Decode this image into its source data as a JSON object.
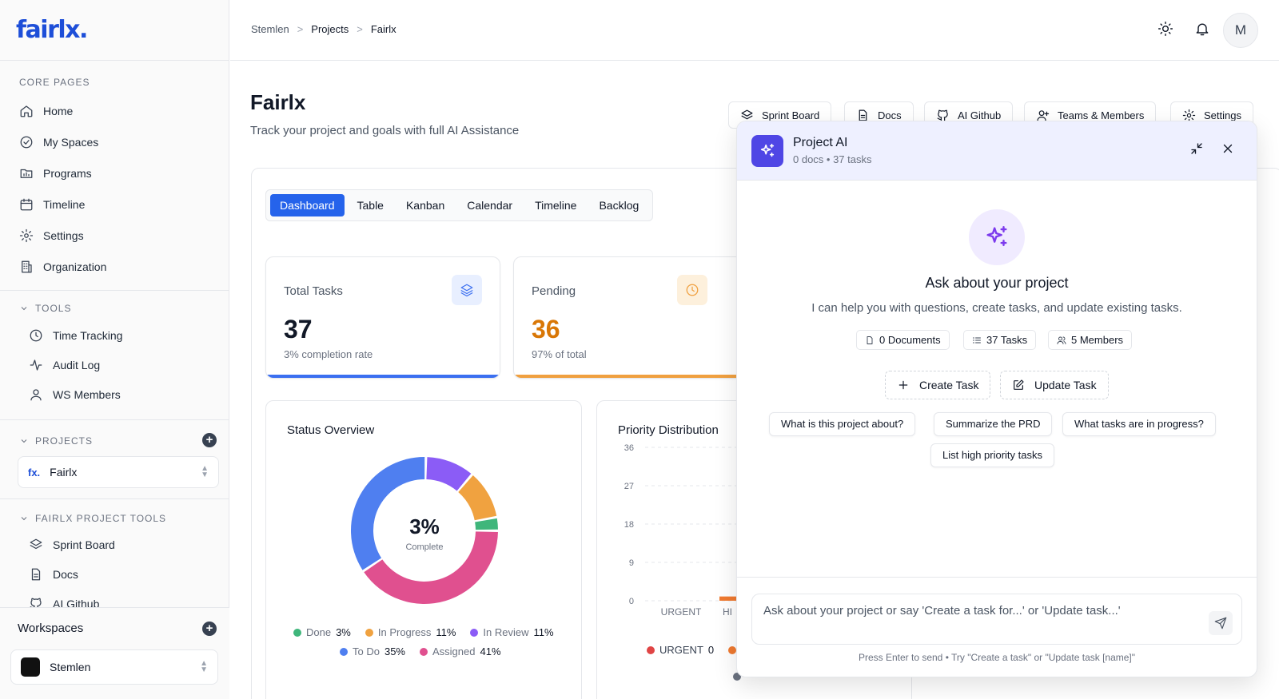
{
  "brand": {
    "logo_text": "fairlx."
  },
  "sidebar": {
    "core_label": "CORE PAGES",
    "core_items": [
      {
        "label": "Home",
        "icon": "home-icon"
      },
      {
        "label": "My Spaces",
        "icon": "check-circle-icon"
      },
      {
        "label": "Programs",
        "icon": "folder-chart-icon"
      },
      {
        "label": "Timeline",
        "icon": "calendar-icon"
      },
      {
        "label": "Settings",
        "icon": "gear-icon"
      },
      {
        "label": "Organization",
        "icon": "building-icon"
      }
    ],
    "tools_label": "TOOLS",
    "tools_items": [
      {
        "label": "Time Tracking",
        "icon": "clock-icon"
      },
      {
        "label": "Audit Log",
        "icon": "activity-icon"
      },
      {
        "label": "WS Members",
        "icon": "user-icon"
      }
    ],
    "projects_label": "PROJECTS",
    "project_selected": "Fairlx",
    "project_tools_label": "FAIRLX PROJECT TOOLS",
    "project_tools_items": [
      {
        "label": "Sprint Board",
        "icon": "layers-icon"
      },
      {
        "label": "Docs",
        "icon": "document-icon"
      },
      {
        "label": "AI Github",
        "icon": "github-icon"
      }
    ],
    "workspaces_label": "Workspaces",
    "workspace_selected": "Stemlen"
  },
  "header": {
    "breadcrumbs": [
      "Stemlen",
      "Projects",
      "Fairlx"
    ],
    "avatar_initial": "M"
  },
  "page": {
    "title": "Fairlx",
    "subtitle": "Track your project and goals with full AI Assistance",
    "actions": [
      "Sprint Board",
      "Docs",
      "AI Github",
      "Teams & Members",
      "Settings"
    ],
    "tabs": [
      "Dashboard",
      "Table",
      "Kanban",
      "Calendar",
      "Timeline",
      "Backlog"
    ],
    "active_tab": "Dashboard"
  },
  "stats": {
    "total": {
      "label": "Total Tasks",
      "value": "37",
      "sub": "3% completion rate",
      "color": "#3b6ff0"
    },
    "pending": {
      "label": "Pending",
      "value": "36",
      "sub": "97% of total",
      "color": "#f0a040",
      "value_color": "#d97706"
    }
  },
  "status_overview": {
    "title": "Status Overview",
    "center_value": "3%",
    "center_label": "Complete",
    "legend": [
      {
        "name": "Done",
        "pct": "3%",
        "color": "#3fb67b"
      },
      {
        "name": "In Progress",
        "pct": "11%",
        "color": "#f0a240"
      },
      {
        "name": "In Review",
        "pct": "11%",
        "color": "#8b5cf6"
      },
      {
        "name": "To Do",
        "pct": "35%",
        "color": "#4f7ff0"
      },
      {
        "name": "Assigned",
        "pct": "41%",
        "color": "#e0508f"
      }
    ]
  },
  "chart_data": {
    "type": "bar",
    "title": "Priority Distribution",
    "categories": [
      "URGENT",
      "HI"
    ],
    "values": [
      0,
      1
    ],
    "ylim": [
      0,
      36
    ],
    "yticks": [
      0,
      9,
      18,
      27,
      36
    ],
    "grid": true,
    "legend": [
      {
        "name": "URGENT",
        "value": "0",
        "color": "#e04545"
      }
    ]
  },
  "ai_panel": {
    "title": "Project AI",
    "meta": "0 docs • 37 tasks",
    "heading": "Ask about your project",
    "description": "I can help you with questions, create tasks, and update existing tasks.",
    "chips": [
      "0 Documents",
      "37 Tasks",
      "5 Members"
    ],
    "actions": [
      "Create Task",
      "Update Task"
    ],
    "suggestions": [
      "What is this project about?",
      "Summarize the PRD",
      "What tasks are in progress?",
      "List high priority tasks"
    ],
    "input_placeholder": "Ask about your project or say 'Create a task for...' or 'Update task...'",
    "hint": "Press Enter to send • Try \"Create a task\" or \"Update task [name]\""
  }
}
